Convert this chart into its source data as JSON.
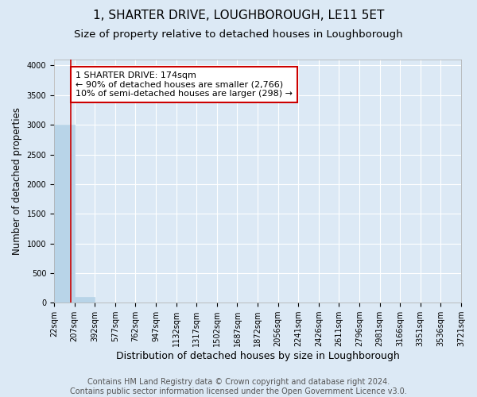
{
  "title": "1, SHARTER DRIVE, LOUGHBOROUGH, LE11 5ET",
  "subtitle": "Size of property relative to detached houses in Loughborough",
  "xlabel": "Distribution of detached houses by size in Loughborough",
  "ylabel": "Number of detached properties",
  "footer_line1": "Contains HM Land Registry data © Crown copyright and database right 2024.",
  "footer_line2": "Contains public sector information licensed under the Open Government Licence v3.0.",
  "bin_edges": [
    22,
    207,
    392,
    577,
    762,
    947,
    1132,
    1317,
    1502,
    1687,
    1872,
    2056,
    2241,
    2426,
    2611,
    2796,
    2981,
    3166,
    3351,
    3536,
    3721
  ],
  "bar_heights": [
    3000,
    100,
    0,
    0,
    0,
    0,
    0,
    0,
    0,
    0,
    0,
    0,
    0,
    0,
    0,
    0,
    0,
    0,
    0,
    0
  ],
  "bar_color": "#b8d4e8",
  "bar_edgecolor": "#b8d4e8",
  "background_color": "#dce9f5",
  "grid_color": "#ffffff",
  "property_size": 174,
  "vline_color": "#cc0000",
  "annotation_text": "1 SHARTER DRIVE: 174sqm\n← 90% of detached houses are smaller (2,766)\n10% of semi-detached houses are larger (298) →",
  "annotation_box_color": "#ffffff",
  "annotation_box_edgecolor": "#cc0000",
  "ylim": [
    0,
    4100
  ],
  "yticks": [
    0,
    500,
    1000,
    1500,
    2000,
    2500,
    3000,
    3500,
    4000
  ],
  "title_fontsize": 11,
  "subtitle_fontsize": 9.5,
  "xlabel_fontsize": 9,
  "ylabel_fontsize": 8.5,
  "tick_fontsize": 7,
  "annotation_fontsize": 8,
  "footer_fontsize": 7
}
